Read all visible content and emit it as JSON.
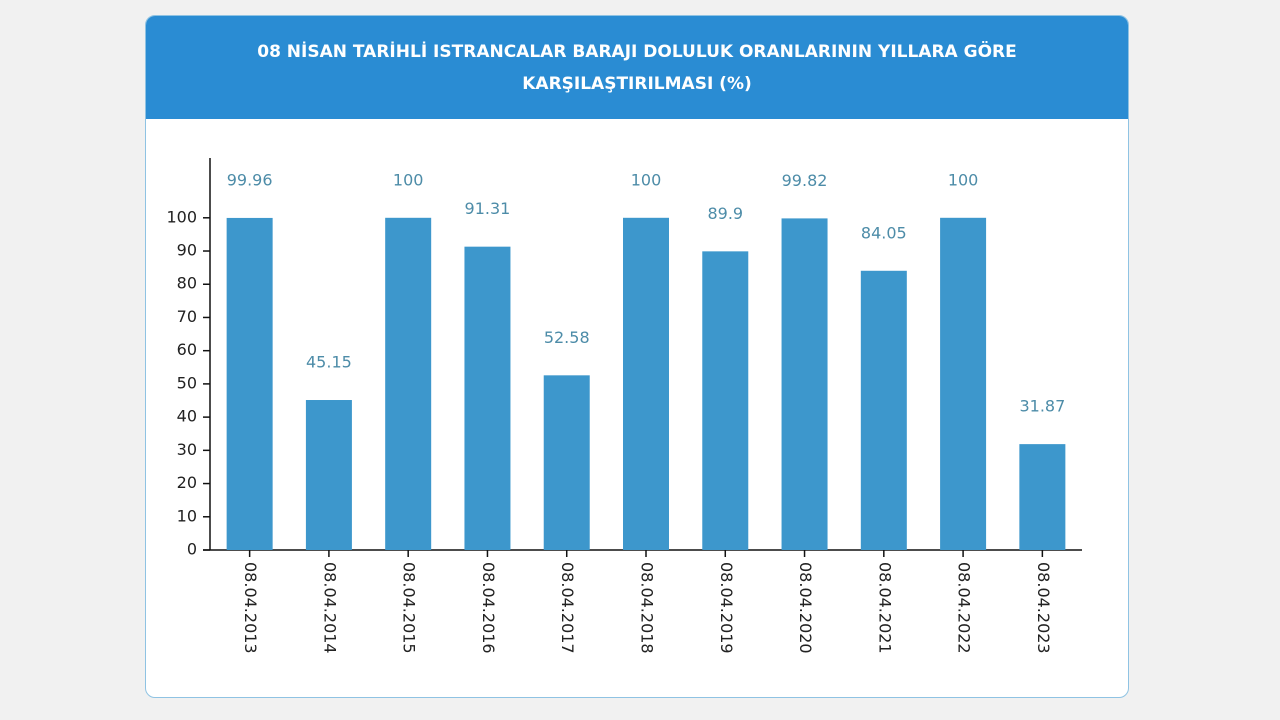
{
  "chart_data": {
    "type": "bar",
    "title": "08 NİSAN TARİHLİ ISTRANCALAR BARAJI DOLULUK ORANLARININ YILLARA GÖRE KARŞILAŞTIRILMASI (%)",
    "categories": [
      "08.04.2013",
      "08.04.2014",
      "08.04.2015",
      "08.04.2016",
      "08.04.2017",
      "08.04.2018",
      "08.04.2019",
      "08.04.2020",
      "08.04.2021",
      "08.04.2022",
      "08.04.2023"
    ],
    "values": [
      99.96,
      45.15,
      100,
      91.31,
      52.58,
      100,
      89.9,
      99.82,
      84.05,
      100,
      31.87
    ],
    "color": "#3d97cc",
    "ylim": [
      0,
      118
    ],
    "yticks": [
      0,
      10,
      20,
      30,
      40,
      50,
      60,
      70,
      80,
      90,
      100
    ],
    "grid": false
  }
}
